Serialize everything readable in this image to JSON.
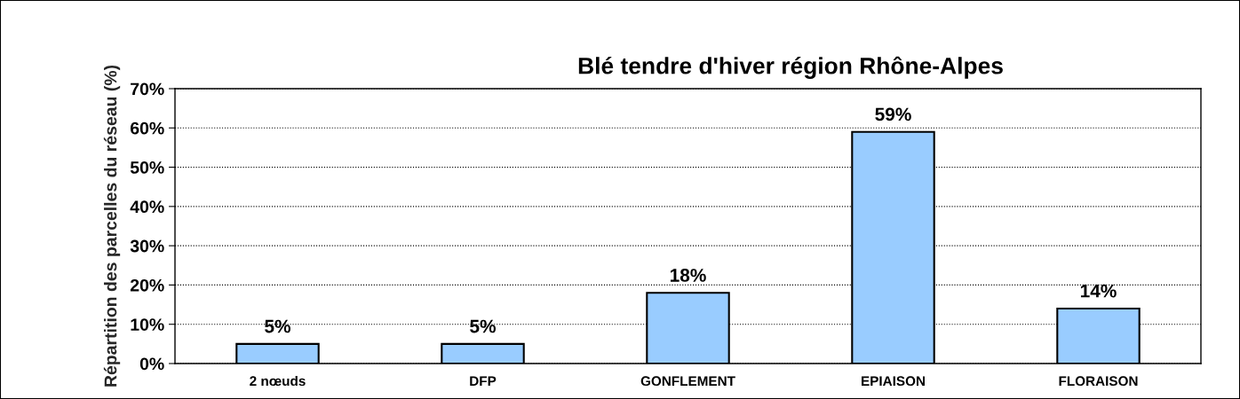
{
  "chart_data": {
    "type": "bar",
    "title": "Blé tendre d'hiver région Rhône-Alpes",
    "ylabel": "Répartition des parcelles du réseau (%)",
    "categories": [
      "2 nœuds",
      "DFP",
      "GONFLEMENT",
      "EPIAISON",
      "FLORAISON"
    ],
    "series": [
      {
        "color": "#99ccff",
        "values": [
          5,
          5,
          18,
          59,
          14
        ]
      }
    ],
    "value_labels": [
      "5%",
      "5%",
      "18%",
      "59%",
      "14%"
    ],
    "ylim": [
      0,
      70
    ],
    "yticks": [
      {
        "value": 0,
        "label": "0%"
      },
      {
        "value": 10,
        "label": "10%"
      },
      {
        "value": 20,
        "label": "20%"
      },
      {
        "value": 30,
        "label": "30%"
      },
      {
        "value": 40,
        "label": "40%"
      },
      {
        "value": 50,
        "label": "50%"
      },
      {
        "value": 60,
        "label": "60%"
      },
      {
        "value": 70,
        "label": "70%"
      }
    ],
    "grid": "y"
  }
}
